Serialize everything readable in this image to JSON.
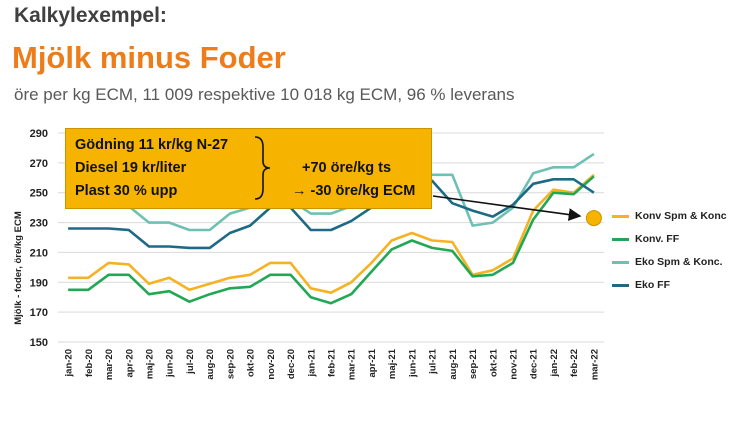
{
  "header": {
    "kicker": "Kalkylexempel:",
    "title": "Mjölk minus Foder",
    "subtitle": "öre per kg ECM,  11 009 respektive 10 018 kg ECM, 96 % leverans"
  },
  "callout": {
    "line1": "Gödning 11 kr/kg N-27",
    "line2": "Diesel 19 kr/liter",
    "line3": "Plast 30 % upp",
    "effect1": "+70 öre/kg ts",
    "effect2": "→ -30 öre/kg ECM",
    "target_value": 233,
    "color": "#F6B400"
  },
  "chart_data": {
    "type": "line",
    "ylabel": "Mjölk - foder, öre/kg ECM",
    "ylim": [
      150,
      290
    ],
    "yticks": [
      150,
      170,
      190,
      210,
      230,
      250,
      270,
      290
    ],
    "grid": "horizontal",
    "legend_position": "right",
    "categories": [
      "jan-20",
      "feb-20",
      "mar-20",
      "apr-20",
      "maj-20",
      "jun-20",
      "jul-20",
      "aug-20",
      "sep-20",
      "okt-20",
      "nov-20",
      "dec-20",
      "jan-21",
      "feb-21",
      "mar-21",
      "apr-21",
      "maj-21",
      "jun-21",
      "jul-21",
      "aug-21",
      "sep-21",
      "okt-21",
      "nov-21",
      "dec-21",
      "jan-22",
      "feb-22",
      "mar-22"
    ],
    "series": [
      {
        "name": "Konv Spm & Konc",
        "color": "#F5B323",
        "values": [
          193,
          193,
          203,
          202,
          189,
          193,
          185,
          189,
          193,
          195,
          203,
          203,
          186,
          183,
          190,
          203,
          218,
          223,
          218,
          217,
          195,
          198,
          206,
          238,
          252,
          250,
          262
        ]
      },
      {
        "name": "Konv. FF",
        "color": "#22A854",
        "values": [
          185,
          185,
          195,
          195,
          182,
          184,
          177,
          182,
          186,
          187,
          195,
          195,
          180,
          176,
          182,
          197,
          212,
          218,
          213,
          211,
          194,
          195,
          203,
          232,
          250,
          249,
          261
        ]
      },
      {
        "name": "Eko Spm & Konc.",
        "color": "#6FC0B4",
        "values": [
          242,
          242,
          243,
          241,
          230,
          230,
          225,
          225,
          236,
          240,
          247,
          245,
          236,
          236,
          241,
          249,
          252,
          258,
          262,
          262,
          228,
          230,
          240,
          263,
          267,
          267,
          276
        ]
      },
      {
        "name": "Eko FF",
        "color": "#1E6A86",
        "values": [
          226,
          226,
          226,
          225,
          214,
          214,
          213,
          213,
          223,
          228,
          240,
          240,
          225,
          225,
          231,
          240,
          250,
          258,
          258,
          243,
          238,
          234,
          242,
          256,
          259,
          259,
          250
        ]
      }
    ]
  }
}
